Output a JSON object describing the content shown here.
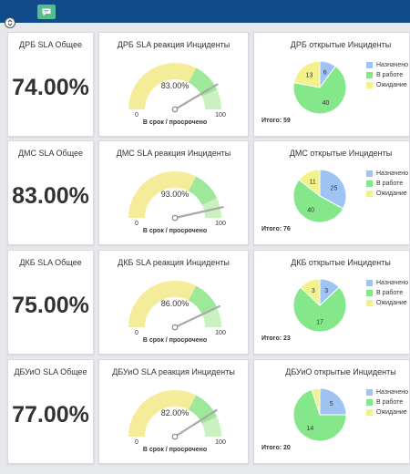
{
  "colors": {
    "header": "#114b8c",
    "gauge_yellow": "#f5ec9a",
    "gauge_green": "#9ee89a",
    "gauge_light_green": "#c9f2c0",
    "pie_assigned": "#9fc3f3",
    "pie_in_work": "#84e78a",
    "pie_waiting": "#f3f28a"
  },
  "header": {
    "chat_icon": "chat-icon"
  },
  "rows": [
    {
      "sla_title": "ДРБ SLA Общее",
      "sla_value": "74.00%",
      "gauge_title": "ДРБ SLA реакция Инциденты",
      "gauge_value_text": "83.00%",
      "gauge_value": 83,
      "gauge_min": "0",
      "gauge_max": "100",
      "gauge_caption": "В срок / просрочено",
      "pie_title": "ДРБ открытые Инциденты",
      "pie_total": "Итого: 59",
      "pie_values": [
        6,
        40,
        13
      ],
      "pie_labels": [
        "6",
        "40",
        "13"
      ],
      "legend": [
        "Назначено",
        "В работе",
        "Ожидание"
      ]
    },
    {
      "sla_title": "ДМС SLA Общее",
      "sla_value": "83.00%",
      "gauge_title": "ДМС SLA реакция Инциденты",
      "gauge_value_text": "93.00%",
      "gauge_value": 93,
      "gauge_min": "0",
      "gauge_max": "100",
      "gauge_caption": "В срок / просрочено",
      "pie_title": "ДМС открытые Инциденты",
      "pie_total": "Итого: 76",
      "pie_values": [
        25,
        40,
        11
      ],
      "pie_labels": [
        "25",
        "40",
        "11"
      ],
      "legend": [
        "Назначено",
        "В работе",
        "Ожидание"
      ]
    },
    {
      "sla_title": "ДКБ SLA Общее",
      "sla_value": "75.00%",
      "gauge_title": "ДКБ SLA реакция Инциденты",
      "gauge_value_text": "86.00%",
      "gauge_value": 86,
      "gauge_min": "0",
      "gauge_max": "100",
      "gauge_caption": "В срок / просрочено",
      "pie_title": "ДКБ открытые Инциденты",
      "pie_total": "Итого: 23",
      "pie_values": [
        3,
        17,
        3
      ],
      "pie_labels": [
        "3",
        "17",
        "3"
      ],
      "legend": [
        "Назначено",
        "В работе",
        "Ожидание"
      ]
    },
    {
      "sla_title": "ДБУиО SLA Общее",
      "sla_value": "77.00%",
      "gauge_title": "ДБУиО SLA реакция Инциденты",
      "gauge_value_text": "82.00%",
      "gauge_value": 82,
      "gauge_min": "0",
      "gauge_max": "100",
      "gauge_caption": "В срок / просрочено",
      "pie_title": "ДБУиО открытые Инциденты",
      "pie_total": "Итого: 20",
      "pie_values": [
        5,
        14,
        1
      ],
      "pie_labels": [
        "5",
        "14",
        ""
      ],
      "legend": [
        "Назначено",
        "В работе",
        "Ожидание"
      ]
    }
  ]
}
